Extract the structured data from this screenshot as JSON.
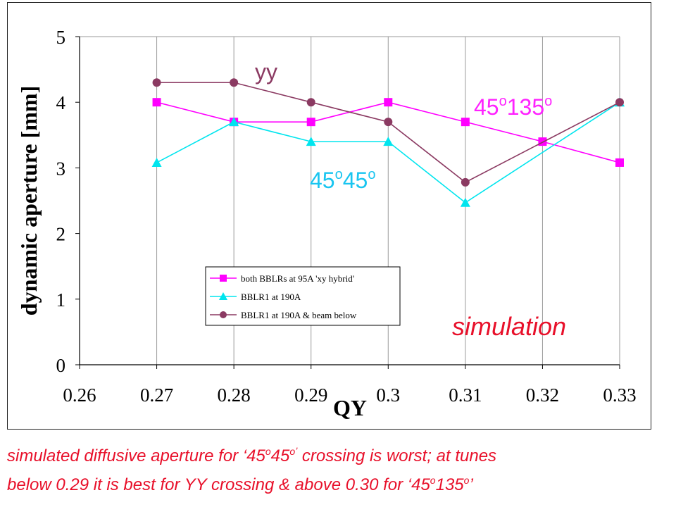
{
  "chart_data": {
    "type": "line",
    "xlabel": "QY",
    "ylabel": "dynamic aperture [mm]",
    "xlim": [
      0.26,
      0.33
    ],
    "ylim": [
      0,
      5
    ],
    "x_ticks": [
      "0.26",
      "0.27",
      "0.28",
      "0.29",
      "0.3",
      "0.31",
      "0.32",
      "0.33"
    ],
    "y_ticks": [
      "0",
      "1",
      "2",
      "3",
      "4",
      "5"
    ],
    "grid": "vertical",
    "legend_position": "lower-center",
    "series": [
      {
        "name": "both BBLRs at 95A 'xy hybrid'",
        "color": "#ff00ff",
        "marker": "square",
        "x": [
          0.27,
          0.28,
          0.29,
          0.3,
          0.31,
          0.32,
          0.33
        ],
        "y": [
          4.0,
          3.7,
          3.7,
          4.0,
          3.7,
          3.4,
          3.08
        ]
      },
      {
        "name": "BBLR1 at 190A",
        "color": "#00e5ee",
        "marker": "triangle",
        "x": [
          0.27,
          0.28,
          0.29,
          0.3,
          0.31,
          0.33
        ],
        "y": [
          3.08,
          3.7,
          3.4,
          3.4,
          2.47,
          4.0
        ]
      },
      {
        "name": "BBLR1 at 190A & beam below",
        "color": "#8b3a62",
        "marker": "circle",
        "x": [
          0.27,
          0.28,
          0.29,
          0.3,
          0.31,
          0.33
        ],
        "y": [
          4.3,
          4.3,
          4.0,
          3.7,
          2.78,
          4.0
        ]
      }
    ],
    "annotations": [
      {
        "id": "yy",
        "text": "yy",
        "color": "#8b3a62"
      },
      {
        "id": "a45135",
        "base1": "45",
        "sup1": "o",
        "base2": "135",
        "sup2": "o",
        "color": "#ff22ff"
      },
      {
        "id": "a4545",
        "base1": "45",
        "sup1": "o",
        "base2": "45",
        "sup2": "o",
        "color": "#19c5f0"
      }
    ],
    "watermark": "simulation"
  },
  "caption": {
    "line1_a": "simulated diffusive aperture for ‘45",
    "line1_sup1": "o",
    "line1_b": "45",
    "line1_sup2": "oʼ",
    "line1_c": " crossing is worst; at tunes",
    "line2_a": "below 0.29 it is best for YY crossing  & above 0.30 for ‘45",
    "line2_sup1": "o",
    "line2_b": "135",
    "line2_sup2": "o",
    "line2_c": "’"
  }
}
